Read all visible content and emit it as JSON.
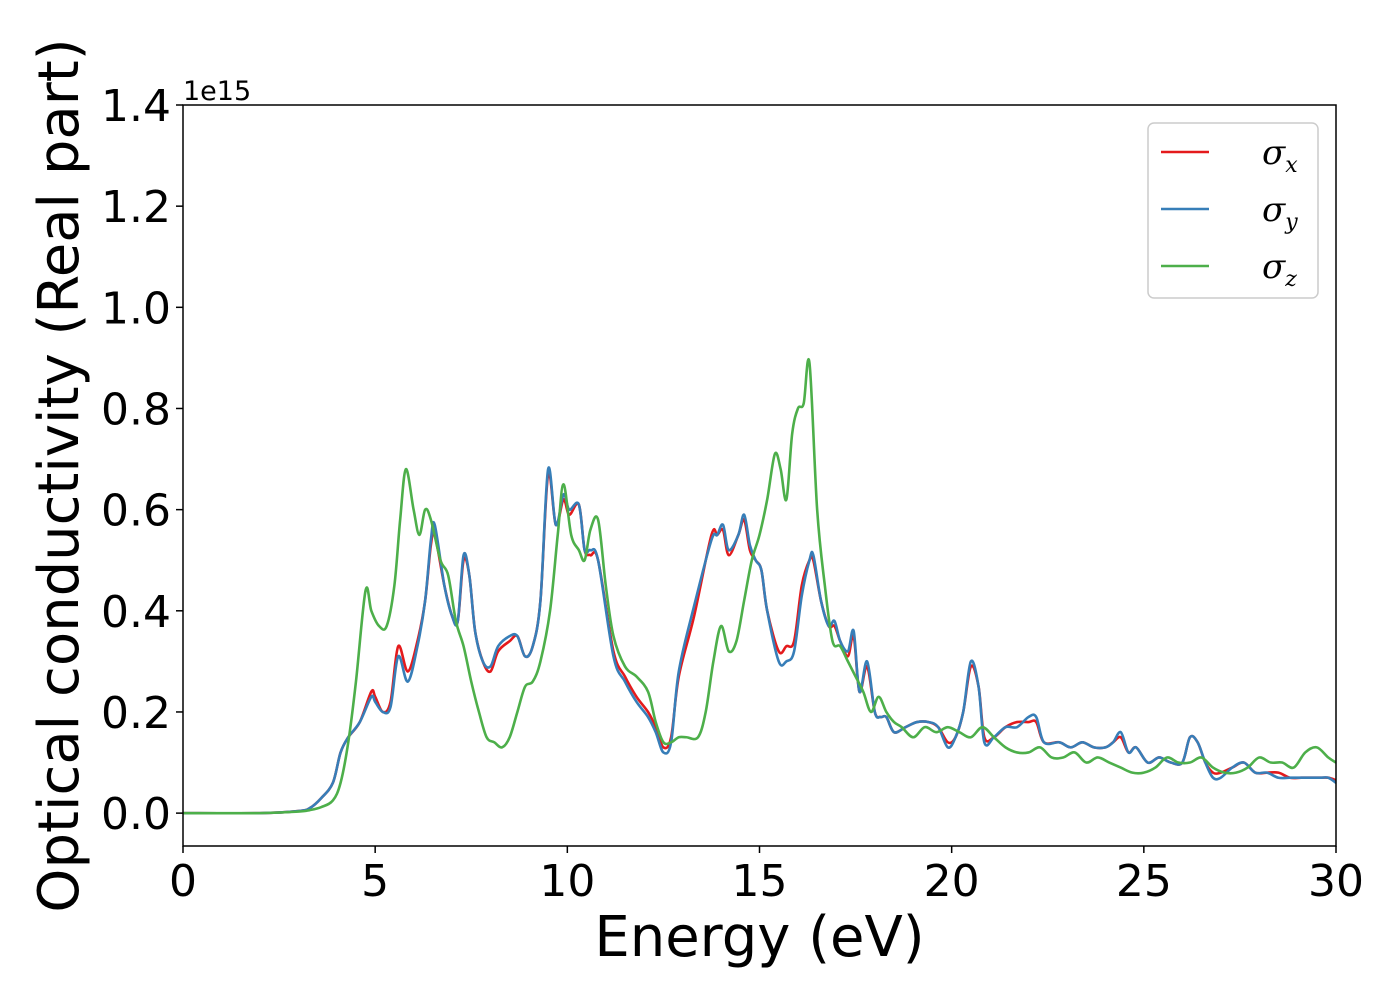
{
  "chart_data": {
    "type": "line",
    "xlabel": "Energy (eV)",
    "ylabel": "Optical conductivity (Real part)",
    "y_offset_text": "1e15",
    "y_scale": 1000000000000000.0,
    "xlim": [
      0,
      30
    ],
    "ylim": [
      -0.065,
      1.4
    ],
    "xticks": [
      0,
      5,
      10,
      15,
      20,
      25,
      30
    ],
    "xtick_labels": [
      "0",
      "5",
      "10",
      "15",
      "20",
      "25",
      "30"
    ],
    "yticks": [
      0.0,
      0.2,
      0.4,
      0.6,
      0.8,
      1.0,
      1.2,
      1.4
    ],
    "ytick_labels": [
      "0.0",
      "0.2",
      "0.4",
      "0.6",
      "0.8",
      "1.0",
      "1.2",
      "1.4"
    ],
    "grid": false,
    "legend_position": "top-right",
    "series": [
      {
        "name": "σx",
        "symbol": "σ",
        "subscript": "x",
        "color": "#e41a1c",
        "x": [
          0,
          2,
          3,
          3.3,
          3.6,
          3.9,
          4.1,
          4.3,
          4.6,
          4.9,
          5.0,
          5.2,
          5.4,
          5.6,
          5.85,
          6.1,
          6.3,
          6.45,
          6.55,
          6.8,
          7.0,
          7.15,
          7.3,
          7.45,
          7.6,
          7.8,
          8.0,
          8.2,
          8.5,
          8.7,
          8.9,
          9.1,
          9.3,
          9.5,
          9.7,
          9.9,
          10.05,
          10.3,
          10.45,
          10.6,
          10.8,
          11.2,
          11.5,
          11.8,
          12.1,
          12.3,
          12.5,
          12.7,
          12.9,
          13.3,
          13.75,
          13.9,
          14.05,
          14.2,
          14.45,
          14.6,
          14.75,
          14.9,
          15.05,
          15.2,
          15.5,
          15.7,
          15.9,
          16.1,
          16.3,
          16.4,
          16.6,
          16.8,
          16.95,
          17.1,
          17.3,
          17.45,
          17.6,
          17.8,
          18.0,
          18.15,
          18.3,
          18.5,
          18.8,
          19.1,
          19.4,
          19.65,
          19.9,
          20.1,
          20.3,
          20.5,
          20.7,
          20.85,
          21.1,
          21.4,
          21.7,
          22.0,
          22.2,
          22.4,
          22.8,
          23.1,
          23.4,
          23.7,
          24.0,
          24.2,
          24.4,
          24.6,
          24.8,
          25.1,
          25.4,
          25.7,
          26.0,
          26.2,
          26.4,
          26.6,
          26.8,
          27.0,
          27.3,
          27.6,
          27.9,
          28.2,
          28.5,
          28.8,
          29.1,
          29.4,
          29.6,
          29.8,
          30
        ],
        "values": [
          0.0,
          0.0,
          0.004,
          0.01,
          0.03,
          0.06,
          0.12,
          0.15,
          0.18,
          0.24,
          0.23,
          0.2,
          0.22,
          0.33,
          0.28,
          0.34,
          0.42,
          0.53,
          0.55,
          0.45,
          0.39,
          0.38,
          0.5,
          0.47,
          0.36,
          0.3,
          0.28,
          0.32,
          0.34,
          0.35,
          0.31,
          0.33,
          0.42,
          0.67,
          0.57,
          0.62,
          0.59,
          0.61,
          0.52,
          0.51,
          0.5,
          0.32,
          0.27,
          0.23,
          0.2,
          0.17,
          0.13,
          0.15,
          0.27,
          0.39,
          0.55,
          0.55,
          0.56,
          0.51,
          0.55,
          0.58,
          0.52,
          0.5,
          0.48,
          0.4,
          0.32,
          0.33,
          0.34,
          0.45,
          0.5,
          0.5,
          0.42,
          0.37,
          0.37,
          0.34,
          0.31,
          0.35,
          0.24,
          0.29,
          0.2,
          0.19,
          0.19,
          0.16,
          0.17,
          0.18,
          0.18,
          0.17,
          0.14,
          0.15,
          0.2,
          0.29,
          0.25,
          0.15,
          0.15,
          0.17,
          0.18,
          0.18,
          0.18,
          0.14,
          0.14,
          0.13,
          0.14,
          0.13,
          0.13,
          0.14,
          0.15,
          0.12,
          0.13,
          0.1,
          0.11,
          0.1,
          0.1,
          0.15,
          0.14,
          0.1,
          0.08,
          0.08,
          0.09,
          0.1,
          0.08,
          0.08,
          0.08,
          0.07,
          0.07,
          0.07,
          0.07,
          0.07,
          0.065
        ]
      },
      {
        "name": "σy",
        "symbol": "σ",
        "subscript": "y",
        "color": "#377eb8",
        "x": [
          0,
          2,
          3,
          3.3,
          3.6,
          3.9,
          4.1,
          4.3,
          4.6,
          4.9,
          5.0,
          5.2,
          5.4,
          5.6,
          5.85,
          6.1,
          6.3,
          6.45,
          6.55,
          6.8,
          7.0,
          7.15,
          7.3,
          7.45,
          7.6,
          7.8,
          8.0,
          8.2,
          8.5,
          8.7,
          8.9,
          9.1,
          9.3,
          9.5,
          9.7,
          9.9,
          10.05,
          10.3,
          10.45,
          10.6,
          10.8,
          11.2,
          11.5,
          11.8,
          12.1,
          12.3,
          12.5,
          12.7,
          12.9,
          13.3,
          13.75,
          13.9,
          14.05,
          14.2,
          14.45,
          14.6,
          14.75,
          14.9,
          15.05,
          15.2,
          15.5,
          15.7,
          15.9,
          16.1,
          16.3,
          16.4,
          16.6,
          16.8,
          16.95,
          17.1,
          17.3,
          17.45,
          17.6,
          17.8,
          18.0,
          18.15,
          18.3,
          18.5,
          18.8,
          19.1,
          19.4,
          19.65,
          19.9,
          20.1,
          20.3,
          20.5,
          20.7,
          20.85,
          21.1,
          21.4,
          21.7,
          22.0,
          22.2,
          22.4,
          22.8,
          23.1,
          23.4,
          23.7,
          24.0,
          24.2,
          24.4,
          24.6,
          24.8,
          25.1,
          25.4,
          25.7,
          26.0,
          26.2,
          26.4,
          26.6,
          26.8,
          27.0,
          27.3,
          27.6,
          27.9,
          28.2,
          28.5,
          28.8,
          29.1,
          29.4,
          29.6,
          29.8,
          30
        ],
        "values": [
          0.0,
          0.0,
          0.004,
          0.01,
          0.03,
          0.06,
          0.12,
          0.15,
          0.18,
          0.23,
          0.22,
          0.2,
          0.21,
          0.31,
          0.26,
          0.33,
          0.42,
          0.54,
          0.57,
          0.45,
          0.39,
          0.38,
          0.51,
          0.47,
          0.36,
          0.3,
          0.29,
          0.33,
          0.35,
          0.35,
          0.31,
          0.33,
          0.42,
          0.68,
          0.57,
          0.63,
          0.6,
          0.61,
          0.52,
          0.52,
          0.5,
          0.31,
          0.26,
          0.22,
          0.19,
          0.16,
          0.12,
          0.14,
          0.28,
          0.41,
          0.54,
          0.55,
          0.57,
          0.52,
          0.55,
          0.59,
          0.53,
          0.5,
          0.48,
          0.4,
          0.3,
          0.3,
          0.32,
          0.43,
          0.5,
          0.51,
          0.42,
          0.37,
          0.38,
          0.34,
          0.32,
          0.36,
          0.24,
          0.3,
          0.2,
          0.19,
          0.19,
          0.16,
          0.17,
          0.18,
          0.18,
          0.17,
          0.13,
          0.15,
          0.2,
          0.3,
          0.25,
          0.14,
          0.15,
          0.17,
          0.17,
          0.19,
          0.19,
          0.14,
          0.14,
          0.13,
          0.14,
          0.13,
          0.13,
          0.14,
          0.16,
          0.12,
          0.13,
          0.1,
          0.11,
          0.1,
          0.1,
          0.15,
          0.14,
          0.1,
          0.07,
          0.07,
          0.09,
          0.1,
          0.08,
          0.08,
          0.07,
          0.07,
          0.07,
          0.07,
          0.07,
          0.07,
          0.06
        ]
      },
      {
        "name": "σz",
        "symbol": "σ",
        "subscript": "z",
        "color": "#4daf4a",
        "x": [
          0,
          2,
          3,
          3.3,
          3.6,
          3.9,
          4.1,
          4.3,
          4.5,
          4.75,
          4.9,
          5.1,
          5.3,
          5.5,
          5.65,
          5.8,
          6.0,
          6.15,
          6.3,
          6.45,
          6.7,
          6.9,
          7.1,
          7.3,
          7.5,
          7.7,
          7.9,
          8.1,
          8.3,
          8.5,
          8.7,
          8.9,
          9.1,
          9.3,
          9.55,
          9.75,
          9.9,
          10.1,
          10.3,
          10.45,
          10.6,
          10.8,
          11.0,
          11.2,
          11.5,
          11.8,
          12.1,
          12.3,
          12.5,
          12.7,
          12.9,
          13.1,
          13.4,
          13.6,
          13.8,
          14.0,
          14.2,
          14.4,
          14.6,
          14.8,
          15.0,
          15.2,
          15.4,
          15.55,
          15.7,
          15.85,
          16.0,
          16.15,
          16.3,
          16.5,
          16.7,
          16.9,
          17.1,
          17.3,
          17.5,
          17.7,
          17.9,
          18.1,
          18.3,
          18.5,
          18.7,
          19.0,
          19.3,
          19.6,
          19.9,
          20.2,
          20.5,
          20.8,
          21.1,
          21.4,
          21.7,
          22.0,
          22.3,
          22.6,
          22.9,
          23.2,
          23.5,
          23.8,
          24.1,
          24.4,
          24.7,
          25.0,
          25.3,
          25.6,
          25.9,
          26.2,
          26.5,
          26.8,
          27.1,
          27.4,
          27.7,
          28.0,
          28.3,
          28.6,
          28.9,
          29.2,
          29.5,
          29.8,
          30
        ],
        "values": [
          0.0,
          0.0,
          0.003,
          0.006,
          0.012,
          0.025,
          0.06,
          0.14,
          0.26,
          0.44,
          0.4,
          0.37,
          0.37,
          0.45,
          0.58,
          0.68,
          0.6,
          0.55,
          0.6,
          0.58,
          0.5,
          0.47,
          0.38,
          0.33,
          0.26,
          0.2,
          0.15,
          0.14,
          0.13,
          0.15,
          0.2,
          0.25,
          0.26,
          0.3,
          0.4,
          0.55,
          0.65,
          0.55,
          0.52,
          0.5,
          0.56,
          0.58,
          0.45,
          0.35,
          0.29,
          0.27,
          0.24,
          0.18,
          0.14,
          0.14,
          0.15,
          0.15,
          0.15,
          0.2,
          0.3,
          0.37,
          0.32,
          0.34,
          0.42,
          0.5,
          0.55,
          0.62,
          0.71,
          0.68,
          0.62,
          0.75,
          0.8,
          0.81,
          0.89,
          0.6,
          0.45,
          0.34,
          0.33,
          0.3,
          0.27,
          0.24,
          0.2,
          0.23,
          0.2,
          0.18,
          0.17,
          0.15,
          0.17,
          0.16,
          0.17,
          0.16,
          0.15,
          0.17,
          0.15,
          0.13,
          0.12,
          0.12,
          0.13,
          0.11,
          0.11,
          0.12,
          0.1,
          0.11,
          0.1,
          0.09,
          0.08,
          0.08,
          0.09,
          0.11,
          0.1,
          0.1,
          0.11,
          0.09,
          0.08,
          0.08,
          0.09,
          0.11,
          0.1,
          0.1,
          0.09,
          0.12,
          0.13,
          0.11,
          0.1
        ]
      }
    ]
  }
}
